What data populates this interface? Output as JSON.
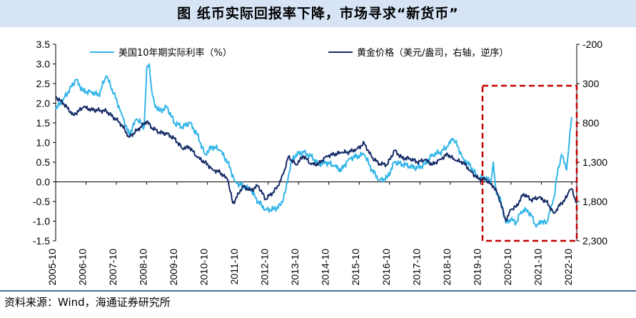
{
  "title": "图  纸币实际回报率下降，市场寻求“新货币”",
  "source": "资料来源：Wind，海通证券研究所",
  "colors": {
    "real_rate": "#33b5e8",
    "gold": "#152a66",
    "highlight_box": "#c00000",
    "title_bg": "#d6e4f5"
  },
  "chart_data": {
    "type": "line",
    "x_tick_labels": [
      "2005-10",
      "2006-10",
      "2007-10",
      "2008-10",
      "2009-10",
      "2010-10",
      "2011-10",
      "2012-10",
      "2013-10",
      "2014-10",
      "2015-10",
      "2016-10",
      "2017-10",
      "2018-10",
      "2019-10",
      "2020-10",
      "2021-10",
      "2022-10"
    ],
    "x_range": [
      "2005-10",
      "2022-12"
    ],
    "left_axis": {
      "range": [
        -1.5,
        3.5
      ],
      "tick_values": [
        3.5,
        3.0,
        2.5,
        2.0,
        1.5,
        1.0,
        0.5,
        0.0,
        -0.5,
        -1.0,
        -1.5
      ],
      "tick_labels": [
        "3.5",
        "3.0",
        "2.5",
        "2.0",
        "1.5",
        "1.0",
        "0.5",
        "0.0",
        "-0.5",
        "-1.0",
        "-1.5"
      ]
    },
    "right_axis": {
      "range": [
        -200,
        2300
      ],
      "inverted": true,
      "tick_values": [
        -200,
        300,
        800,
        1300,
        1800,
        2300
      ],
      "tick_labels": [
        "-200",
        "300",
        "800",
        "1,300",
        "1,800",
        "2,300"
      ]
    },
    "series": [
      {
        "name": "美国10年期实际利率（%）",
        "axis": "left",
        "points": [
          [
            "2005-10",
            1.85
          ],
          [
            "2006-01",
            2.1
          ],
          [
            "2006-03",
            2.3
          ],
          [
            "2006-06",
            2.6
          ],
          [
            "2006-09",
            2.3
          ],
          [
            "2006-12",
            2.3
          ],
          [
            "2007-03",
            2.2
          ],
          [
            "2007-06",
            2.7
          ],
          [
            "2007-09",
            2.25
          ],
          [
            "2007-12",
            1.75
          ],
          [
            "2008-03",
            1.2
          ],
          [
            "2008-06",
            1.6
          ],
          [
            "2008-09",
            1.4
          ],
          [
            "2008-10",
            2.9
          ],
          [
            "2008-11",
            3.0
          ],
          [
            "2008-12",
            2.3
          ],
          [
            "2009-01",
            2.0
          ],
          [
            "2009-03",
            1.8
          ],
          [
            "2009-06",
            1.9
          ],
          [
            "2009-09",
            1.5
          ],
          [
            "2009-12",
            1.4
          ],
          [
            "2010-03",
            1.5
          ],
          [
            "2010-06",
            1.2
          ],
          [
            "2010-09",
            0.7
          ],
          [
            "2010-12",
            0.9
          ],
          [
            "2011-03",
            0.8
          ],
          [
            "2011-06",
            0.5
          ],
          [
            "2011-09",
            0.0
          ],
          [
            "2011-12",
            -0.1
          ],
          [
            "2012-03",
            -0.2
          ],
          [
            "2012-06",
            -0.5
          ],
          [
            "2012-09",
            -0.7
          ],
          [
            "2012-12",
            -0.7
          ],
          [
            "2013-03",
            -0.6
          ],
          [
            "2013-05",
            -0.2
          ],
          [
            "2013-07",
            0.5
          ],
          [
            "2013-09",
            0.7
          ],
          [
            "2013-12",
            0.75
          ],
          [
            "2014-03",
            0.65
          ],
          [
            "2014-06",
            0.45
          ],
          [
            "2014-09",
            0.5
          ],
          [
            "2014-12",
            0.4
          ],
          [
            "2015-03",
            0.3
          ],
          [
            "2015-06",
            0.6
          ],
          [
            "2015-09",
            0.65
          ],
          [
            "2015-12",
            0.7
          ],
          [
            "2016-03",
            0.3
          ],
          [
            "2016-06",
            0.05
          ],
          [
            "2016-09",
            0.1
          ],
          [
            "2016-12",
            0.5
          ],
          [
            "2017-03",
            0.45
          ],
          [
            "2017-06",
            0.4
          ],
          [
            "2017-09",
            0.35
          ],
          [
            "2017-12",
            0.45
          ],
          [
            "2018-03",
            0.7
          ],
          [
            "2018-06",
            0.75
          ],
          [
            "2018-09",
            0.9
          ],
          [
            "2018-11",
            1.1
          ],
          [
            "2019-01",
            0.9
          ],
          [
            "2019-03",
            0.6
          ],
          [
            "2019-06",
            0.4
          ],
          [
            "2019-09",
            0.1
          ],
          [
            "2019-12",
            0.1
          ],
          [
            "2020-02",
            0.0
          ],
          [
            "2020-03",
            0.5
          ],
          [
            "2020-04",
            -0.2
          ],
          [
            "2020-06",
            -0.5
          ],
          [
            "2020-08",
            -1.05
          ],
          [
            "2020-10",
            -0.95
          ],
          [
            "2020-12",
            -1.05
          ],
          [
            "2021-02",
            -0.75
          ],
          [
            "2021-04",
            -0.7
          ],
          [
            "2021-06",
            -0.85
          ],
          [
            "2021-08",
            -1.15
          ],
          [
            "2021-10",
            -1.0
          ],
          [
            "2021-12",
            -1.05
          ],
          [
            "2022-02",
            -0.6
          ],
          [
            "2022-03",
            -0.4
          ],
          [
            "2022-04",
            0.1
          ],
          [
            "2022-06",
            0.7
          ],
          [
            "2022-08",
            0.3
          ],
          [
            "2022-09",
            1.0
          ],
          [
            "2022-10",
            1.65
          ]
        ]
      },
      {
        "name": "黄金价格（美元/盎司，右轴，逆序）",
        "axis": "right",
        "points": [
          [
            "2005-10",
            470
          ],
          [
            "2006-01",
            550
          ],
          [
            "2006-05",
            700
          ],
          [
            "2006-09",
            600
          ],
          [
            "2006-12",
            630
          ],
          [
            "2007-06",
            650
          ],
          [
            "2007-10",
            760
          ],
          [
            "2007-12",
            820
          ],
          [
            "2008-03",
            980
          ],
          [
            "2008-06",
            900
          ],
          [
            "2008-10",
            780
          ],
          [
            "2008-12",
            860
          ],
          [
            "2009-03",
            920
          ],
          [
            "2009-06",
            940
          ],
          [
            "2009-09",
            1000
          ],
          [
            "2009-12",
            1120
          ],
          [
            "2010-03",
            1110
          ],
          [
            "2010-06",
            1240
          ],
          [
            "2010-09",
            1300
          ],
          [
            "2010-12",
            1390
          ],
          [
            "2011-03",
            1430
          ],
          [
            "2011-06",
            1520
          ],
          [
            "2011-08",
            1820
          ],
          [
            "2011-09",
            1780
          ],
          [
            "2011-12",
            1600
          ],
          [
            "2012-03",
            1660
          ],
          [
            "2012-06",
            1600
          ],
          [
            "2012-09",
            1770
          ],
          [
            "2012-12",
            1680
          ],
          [
            "2013-02",
            1600
          ],
          [
            "2013-04",
            1450
          ],
          [
            "2013-06",
            1230
          ],
          [
            "2013-09",
            1330
          ],
          [
            "2013-12",
            1220
          ],
          [
            "2014-03",
            1330
          ],
          [
            "2014-06",
            1320
          ],
          [
            "2014-09",
            1220
          ],
          [
            "2014-12",
            1200
          ],
          [
            "2015-03",
            1180
          ],
          [
            "2015-06",
            1170
          ],
          [
            "2015-09",
            1130
          ],
          [
            "2015-12",
            1060
          ],
          [
            "2016-03",
            1240
          ],
          [
            "2016-06",
            1320
          ],
          [
            "2016-09",
            1330
          ],
          [
            "2016-12",
            1150
          ],
          [
            "2017-03",
            1250
          ],
          [
            "2017-06",
            1250
          ],
          [
            "2017-09",
            1300
          ],
          [
            "2017-12",
            1270
          ],
          [
            "2018-03",
            1330
          ],
          [
            "2018-06",
            1260
          ],
          [
            "2018-09",
            1200
          ],
          [
            "2018-12",
            1280
          ],
          [
            "2019-03",
            1300
          ],
          [
            "2019-06",
            1410
          ],
          [
            "2019-09",
            1510
          ],
          [
            "2019-12",
            1520
          ],
          [
            "2020-02",
            1580
          ],
          [
            "2020-03",
            1600
          ],
          [
            "2020-05",
            1720
          ],
          [
            "2020-08",
            2050
          ],
          [
            "2020-10",
            1900
          ],
          [
            "2020-12",
            1870
          ],
          [
            "2021-03",
            1700
          ],
          [
            "2021-06",
            1780
          ],
          [
            "2021-09",
            1750
          ],
          [
            "2021-12",
            1800
          ],
          [
            "2022-03",
            1950
          ],
          [
            "2022-04",
            1900
          ],
          [
            "2022-06",
            1820
          ],
          [
            "2022-08",
            1750
          ],
          [
            "2022-09",
            1660
          ],
          [
            "2022-10",
            1640
          ],
          [
            "2022-11",
            1750
          ],
          [
            "2022-12",
            1800
          ]
        ]
      }
    ],
    "legend_position": "top",
    "grid": false
  }
}
